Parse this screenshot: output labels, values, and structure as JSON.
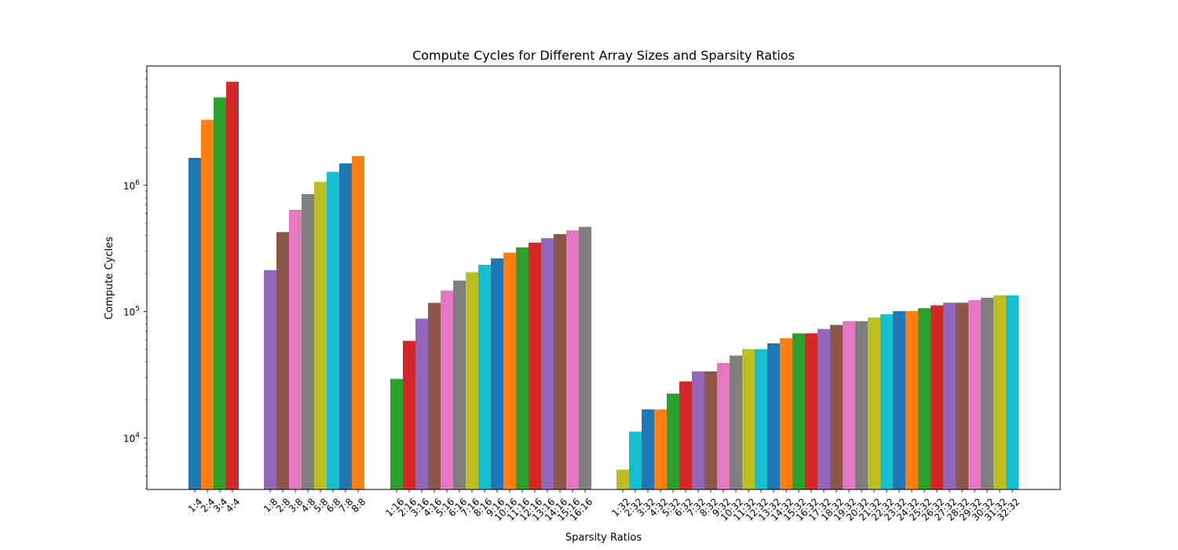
{
  "chart_data": {
    "type": "bar",
    "title": "Compute Cycles for Different Array Sizes and Sparsity Ratios",
    "xlabel": "Sparsity Ratios",
    "ylabel": "Compute Cycles",
    "yscale": "log",
    "ylim": [
      3900,
      8800000
    ],
    "grid": false,
    "legend": "none",
    "y_ticks": [
      {
        "value": 10000,
        "base": "10",
        "exp": "4"
      },
      {
        "value": 100000,
        "base": "10",
        "exp": "5"
      },
      {
        "value": 1000000,
        "base": "10",
        "exp": "6"
      }
    ],
    "palette": [
      "#1f77b4",
      "#ff7f0e",
      "#2ca02c",
      "#d62728",
      "#9467bd",
      "#8c564b",
      "#e377c2",
      "#7f7f7f",
      "#bcbd22",
      "#17becf"
    ],
    "groups": [
      {
        "categories": [
          "1:4",
          "2:4",
          "3:4",
          "4:4"
        ],
        "values": [
          1650000,
          3300000,
          4950000,
          6600000
        ]
      },
      {
        "categories": [
          "1:8",
          "2:8",
          "3:8",
          "4:8",
          "5:8",
          "6:8",
          "7:8",
          "8:8"
        ],
        "values": [
          213000,
          426000,
          639000,
          852000,
          1065000,
          1278000,
          1491000,
          1704000
        ]
      },
      {
        "categories": [
          "1:16",
          "2:16",
          "3:16",
          "4:16",
          "5:16",
          "6:16",
          "7:16",
          "8:16",
          "9:16",
          "10:16",
          "11:16",
          "12:16",
          "13:16",
          "14:16",
          "15:16",
          "16:16"
        ],
        "values": [
          29300,
          58600,
          87900,
          117200,
          146500,
          175800,
          205100,
          234400,
          263700,
          293000,
          322300,
          351600,
          380900,
          410200,
          439500,
          468800
        ]
      },
      {
        "categories": [
          "1:32",
          "2:32",
          "3:32",
          "4:32",
          "5:32",
          "6:32",
          "7:32",
          "8:32",
          "9:32",
          "10:32",
          "11:32",
          "12:32",
          "13:32",
          "14:32",
          "15:32",
          "16:32",
          "17:32",
          "18:32",
          "19:32",
          "20:32",
          "21:32",
          "22:32",
          "23:32",
          "24:32",
          "25:32",
          "26:32",
          "27:32",
          "28:32",
          "29:32",
          "30:32",
          "31:32",
          "32:32"
        ],
        "values": [
          5600,
          11200,
          16800,
          16800,
          22400,
          28000,
          33600,
          33600,
          39200,
          44800,
          50400,
          50400,
          56000,
          61600,
          67200,
          67200,
          72800,
          78400,
          84000,
          84000,
          89600,
          95200,
          100800,
          100800,
          106400,
          112000,
          117600,
          117600,
          123200,
          128800,
          134400,
          134400
        ]
      }
    ]
  }
}
